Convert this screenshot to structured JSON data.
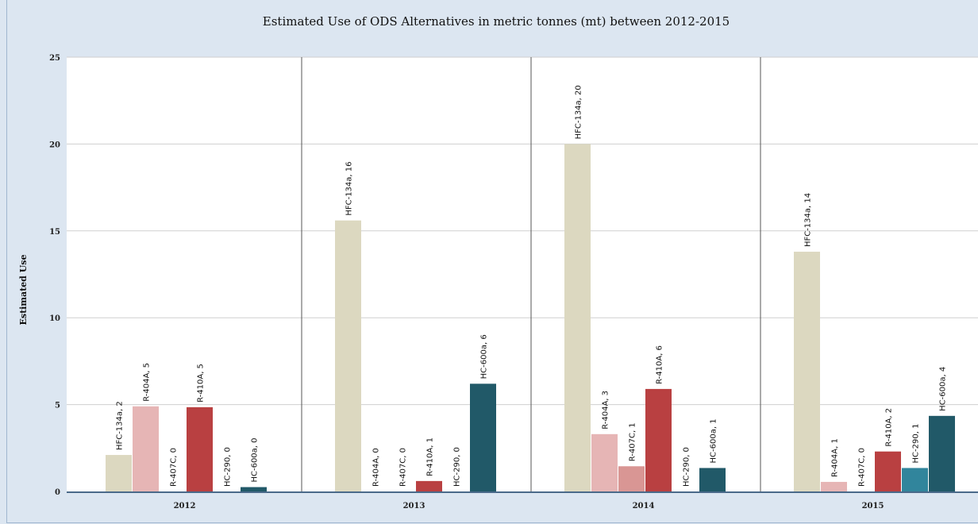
{
  "chart_data": {
    "type": "bar",
    "title": "Estimated Use of ODS Alternatives in metric tonnes (mt) between 2012-2015",
    "ylabel": "Estimated Use",
    "xlabel": "",
    "ylim": [
      0,
      25
    ],
    "yticks": [
      "0",
      "5",
      "10",
      "15",
      "20",
      "25"
    ],
    "grid": true,
    "categories": [
      "2012",
      "2013",
      "2014",
      "2015"
    ],
    "series": [
      {
        "name": "HFC-134a",
        "color": "#dcd8c0",
        "values": [
          2.1,
          15.6,
          20.0,
          13.8
        ],
        "labels": [
          "HFC-134a, 2",
          "HFC-134a, 16",
          "HFC-134a, 20",
          "HFC-134a, 14"
        ]
      },
      {
        "name": "R-404A",
        "color": "#e6b5b5",
        "values": [
          4.9,
          0,
          3.3,
          0.55
        ],
        "labels": [
          "R-404A, 5",
          "R-404A, 0",
          "R-404A, 3",
          "R-404A, 1"
        ]
      },
      {
        "name": "R-407C",
        "color": "#d99694",
        "values": [
          0,
          0,
          1.45,
          0
        ],
        "labels": [
          "R-407C, 0",
          "R-407C, 0",
          "R-407C, 1",
          "R-407C, 0"
        ]
      },
      {
        "name": "R-410A",
        "color": "#b94041",
        "values": [
          4.85,
          0.6,
          5.9,
          2.3
        ],
        "labels": [
          "R-410A, 5",
          "R-410A, 1",
          "R-410A, 6",
          "R-410A, 2"
        ]
      },
      {
        "name": "HC-290",
        "color": "#31859c",
        "values": [
          0,
          0,
          0,
          1.35
        ],
        "labels": [
          "HC-290, 0",
          "HC-290, 0",
          "HC-290, 0",
          "HC-290, 1"
        ]
      },
      {
        "name": "HC-600a",
        "color": "#215968",
        "values": [
          0.25,
          6.2,
          1.35,
          4.35
        ],
        "labels": [
          "HC-600a, 0",
          "HC-600a, 6",
          "HC-600a, 1",
          "HC-600a, 4"
        ]
      }
    ]
  }
}
